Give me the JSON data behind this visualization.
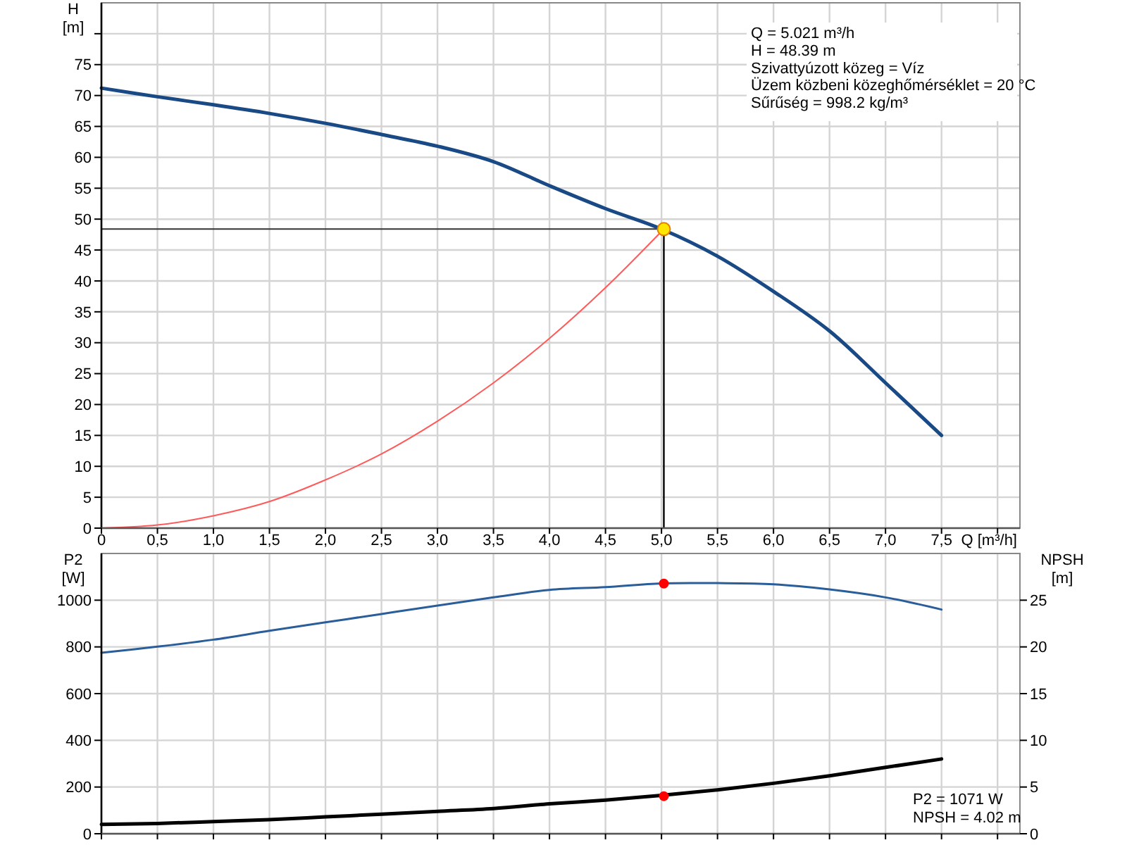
{
  "chart_data": [
    {
      "type": "line",
      "xlabel": "Q [m³/h]",
      "ylabel": "H [m]",
      "xlim": [
        0,
        8.2
      ],
      "ylim": [
        0,
        85
      ],
      "xticks": [
        0,
        {
          "value": 0.5,
          "label": "0,5"
        },
        {
          "value": 1,
          "label": "1,0"
        },
        {
          "value": 1.5,
          "label": "1,5"
        },
        {
          "value": 2,
          "label": "2,0"
        },
        {
          "value": 2.5,
          "label": "2,5"
        },
        {
          "value": 3,
          "label": "3,0"
        },
        {
          "value": 3.5,
          "label": "3,5"
        },
        {
          "value": 4,
          "label": "4,0"
        },
        {
          "value": 4.5,
          "label": "4,5"
        },
        {
          "value": 5,
          "label": "5,0"
        },
        {
          "value": 5.5,
          "label": "5,5"
        },
        {
          "value": 6,
          "label": "6,0"
        },
        {
          "value": 6.5,
          "label": "6,5"
        },
        {
          "value": 7,
          "label": "7,0"
        },
        {
          "value": 7.5,
          "label": "7,5"
        },
        {
          "value": 8,
          "label": null
        }
      ],
      "yticks": [
        0,
        5,
        10,
        15,
        20,
        25,
        30,
        35,
        40,
        45,
        50,
        55,
        60,
        65,
        70,
        75,
        {
          "value": 80,
          "label": null
        }
      ],
      "grid": true,
      "x": [
        0,
        0.5,
        1,
        1.5,
        2,
        2.5,
        3,
        3.5,
        4,
        4.5,
        5,
        5.5,
        6,
        6.5,
        7,
        7.5
      ],
      "series": [
        {
          "color": "#1a4a85",
          "values": [
            71.2,
            69.8,
            68.5,
            67.1,
            65.5,
            63.7,
            61.8,
            59.3,
            55.4,
            51.7,
            48.4,
            44.0,
            38.3,
            31.9,
            23.5,
            15.0
          ]
        },
        {
          "color": "#ff5a5a",
          "x": [
            0,
            0.5,
            1,
            1.5,
            2,
            2.5,
            3,
            3.5,
            4,
            4.5,
            5.021
          ],
          "values": [
            0,
            0.5,
            2.0,
            4.3,
            7.8,
            12.0,
            17.3,
            23.5,
            30.7,
            38.9,
            48.39
          ]
        },
        {
          "type": "scatter",
          "marker": "circle",
          "color": "#ffe600",
          "x": [
            5.021
          ],
          "values": [
            48.39
          ]
        }
      ],
      "ref_lines": [
        {
          "axis": "y",
          "value": 48.39,
          "color": "#333333"
        },
        {
          "axis": "x",
          "value": 5.021,
          "color": "#000000"
        }
      ],
      "annotations": [
        "Q = 5.021 m³/h",
        "H = 48.39 m",
        "Szivattyúzott közeg = Víz",
        "Üzem közbeni közeghőmérséklet = 20 °C",
        "Sűrűség = 998.2 kg/m³"
      ]
    },
    {
      "type": "line",
      "ylabel": "P2 [W]",
      "y2label": "NPSH [m]",
      "xlim": [
        0,
        8.2
      ],
      "ylim": [
        0,
        1200
      ],
      "y2lim": [
        0,
        30
      ],
      "xticks": [
        {
          "value": 0,
          "label": null
        },
        {
          "value": 0.5,
          "label": null
        },
        {
          "value": 1,
          "label": null
        },
        {
          "value": 1.5,
          "label": null
        },
        {
          "value": 2,
          "label": null
        },
        {
          "value": 2.5,
          "label": null
        },
        {
          "value": 3,
          "label": null
        },
        {
          "value": 3.5,
          "label": null
        },
        {
          "value": 4,
          "label": null
        },
        {
          "value": 4.5,
          "label": null
        },
        {
          "value": 5,
          "label": null
        },
        {
          "value": 5.5,
          "label": null
        },
        {
          "value": 6,
          "label": null
        },
        {
          "value": 6.5,
          "label": null
        },
        {
          "value": 7,
          "label": null
        },
        {
          "value": 7.5,
          "label": null
        },
        {
          "value": 8,
          "label": null
        }
      ],
      "yticks": [
        0,
        200,
        400,
        600,
        800,
        1000
      ],
      "y2ticks": [
        0,
        5,
        10,
        15,
        20,
        25
      ],
      "grid": true,
      "tick_labels": "y",
      "x": [
        0,
        0.5,
        1,
        1.5,
        2,
        2.5,
        3,
        3.5,
        4,
        4.5,
        5,
        5.5,
        6,
        6.5,
        7,
        7.5
      ],
      "series": [
        {
          "color": "#2a5e9a",
          "values": [
            775,
            801,
            831,
            869,
            905,
            941,
            977,
            1012,
            1044,
            1056,
            1072,
            1073,
            1068,
            1046,
            1012,
            960
          ]
        },
        {
          "color": "#000000",
          "axis": "y2",
          "values": [
            1.0,
            1.1,
            1.3,
            1.5,
            1.8,
            2.1,
            2.4,
            2.7,
            3.2,
            3.6,
            4.1,
            4.7,
            5.4,
            6.2,
            7.1,
            8.0
          ]
        },
        {
          "type": "scatter",
          "marker": "circle",
          "color": "#ff0000",
          "x": [
            5.021
          ],
          "values": [
            1071
          ]
        },
        {
          "type": "scatter",
          "marker": "circle",
          "color": "#ff0000",
          "axis": "y2",
          "x": [
            5.021
          ],
          "values": [
            4.02
          ]
        }
      ],
      "annotations": [
        "P2 = 1071 W",
        "NPSH = 4.02 m"
      ]
    }
  ]
}
